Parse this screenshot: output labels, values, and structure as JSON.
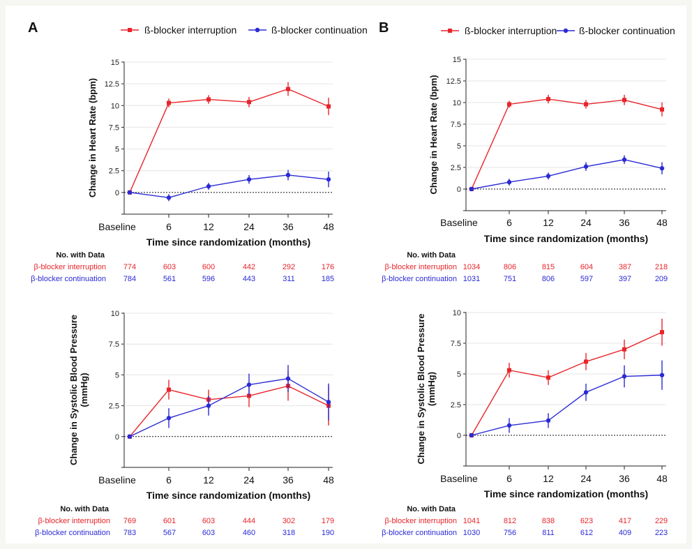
{
  "colors": {
    "red": "#e8242a",
    "blue": "#2a2ad6",
    "axis": "#222222",
    "text": "#111111",
    "bg": "#f6f6f2"
  },
  "figure": {
    "panel_a_label": "A",
    "panel_b_label": "B"
  },
  "legend": {
    "interruption": "ß-blocker interruption",
    "continuation": "ß-blocker continuation"
  },
  "table": {
    "header": "No. with Data",
    "interruption_label": "β-blocker interruption",
    "continuation_label": "β-blocker continuation"
  },
  "chart_data": [
    {
      "id": "A1",
      "type": "line",
      "panel": "A",
      "xlabel": "Time since randomization (months)",
      "ylabel": "Change in Heart Rate (bpm)",
      "categories": [
        "Baseline",
        "6",
        "12",
        "24",
        "36",
        "48"
      ],
      "ylim": [
        -2.5,
        15
      ],
      "yticks": [
        "0",
        "2.5",
        "5",
        "7.5",
        "10",
        "12.5",
        "15"
      ],
      "series": [
        {
          "name": "ß-blocker interruption",
          "color": "#e8242a",
          "values": [
            0,
            10.3,
            10.7,
            10.4,
            11.9,
            9.9
          ],
          "err": [
            0,
            0.5,
            0.5,
            0.6,
            0.8,
            1.0
          ],
          "counts": [
            774,
            603,
            600,
            442,
            292,
            176
          ]
        },
        {
          "name": "ß-blocker continuation",
          "color": "#2a2ad6",
          "values": [
            0,
            -0.6,
            0.7,
            1.5,
            2.0,
            1.5
          ],
          "err": [
            0,
            0.4,
            0.4,
            0.5,
            0.6,
            0.9
          ],
          "counts": [
            784,
            561,
            596,
            443,
            311,
            185
          ]
        }
      ]
    },
    {
      "id": "A2",
      "type": "line",
      "panel": "A",
      "xlabel": "Time since randomization (months)",
      "ylabel": "Change in Systolic Blood Pressure (mmHg)",
      "categories": [
        "Baseline",
        "6",
        "12",
        "24",
        "36",
        "48"
      ],
      "ylim": [
        -2.5,
        10
      ],
      "yticks": [
        "0",
        "2.5",
        "5",
        "7.5",
        "10"
      ],
      "series": [
        {
          "name": "ß-blocker interruption",
          "color": "#e8242a",
          "values": [
            0,
            3.8,
            3.0,
            3.3,
            4.1,
            2.5
          ],
          "err": [
            0,
            0.8,
            0.8,
            0.9,
            1.2,
            1.6
          ],
          "counts": [
            769,
            601,
            603,
            444,
            302,
            179
          ]
        },
        {
          "name": "ß-blocker continuation",
          "color": "#2a2ad6",
          "values": [
            0,
            1.5,
            2.5,
            4.2,
            4.7,
            2.8
          ],
          "err": [
            0,
            0.8,
            0.8,
            0.9,
            1.1,
            1.5
          ],
          "counts": [
            783,
            567,
            603,
            460,
            318,
            190
          ]
        }
      ]
    },
    {
      "id": "B1",
      "type": "line",
      "panel": "B",
      "xlabel": "Time since randomization (months)",
      "ylabel": "Change in Heart Rate (bpm)",
      "categories": [
        "Baseline",
        "6",
        "12",
        "24",
        "36",
        "48"
      ],
      "ylim": [
        -2.5,
        15
      ],
      "yticks": [
        "0",
        "2.5",
        "5",
        "7.5",
        "10",
        "12.5",
        "15"
      ],
      "series": [
        {
          "name": "ß-blocker interruption",
          "color": "#e8242a",
          "values": [
            0,
            9.8,
            10.4,
            9.8,
            10.3,
            9.2
          ],
          "err": [
            0,
            0.4,
            0.5,
            0.5,
            0.6,
            0.8
          ],
          "counts": [
            1034,
            806,
            815,
            604,
            387,
            218
          ]
        },
        {
          "name": "ß-blocker continuation",
          "color": "#2a2ad6",
          "values": [
            0,
            0.8,
            1.5,
            2.6,
            3.4,
            2.4
          ],
          "err": [
            0,
            0.4,
            0.4,
            0.5,
            0.5,
            0.7
          ],
          "counts": [
            1031,
            751,
            806,
            597,
            397,
            209
          ]
        }
      ]
    },
    {
      "id": "B2",
      "type": "line",
      "panel": "B",
      "xlabel": "Time since randomization (months)",
      "ylabel": "Change in Systolic Blood Pressure (mmHg)",
      "categories": [
        "Baseline",
        "6",
        "12",
        "24",
        "36",
        "48"
      ],
      "ylim": [
        -2.5,
        10
      ],
      "yticks": [
        "0",
        "2.5",
        "5",
        "7.5",
        "10"
      ],
      "series": [
        {
          "name": "ß-blocker interruption",
          "color": "#e8242a",
          "values": [
            0,
            5.3,
            4.7,
            6.0,
            7.0,
            8.4
          ],
          "err": [
            0,
            0.6,
            0.6,
            0.7,
            0.8,
            1.1
          ],
          "counts": [
            1041,
            812,
            838,
            623,
            417,
            229
          ]
        },
        {
          "name": "ß-blocker continuation",
          "color": "#2a2ad6",
          "values": [
            0,
            0.8,
            1.2,
            3.5,
            4.8,
            4.9
          ],
          "err": [
            0,
            0.6,
            0.6,
            0.7,
            0.9,
            1.2
          ],
          "counts": [
            1030,
            756,
            811,
            612,
            409,
            223
          ]
        }
      ]
    }
  ]
}
